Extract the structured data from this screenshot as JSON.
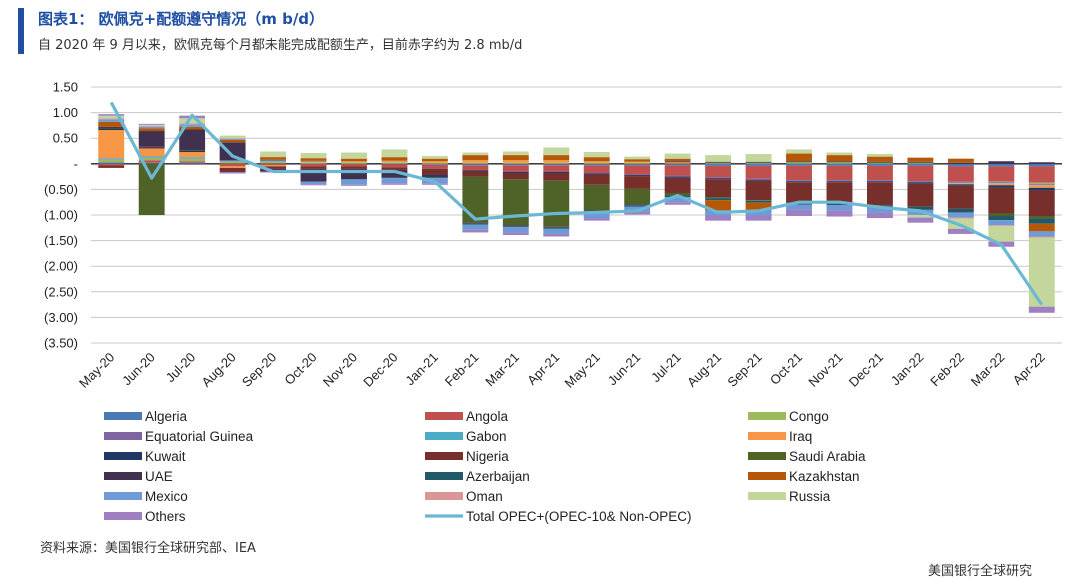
{
  "header": {
    "title": "图表1： 欧佩克+配额遵守情况（m b/d）",
    "subtitle": "自 2020 年 9 月以来，欧佩克每个月都未能完成配额生产，目前赤字约为 2.8 mb/d"
  },
  "footer": {
    "source": "资料来源：美国银行全球研究部、IEA",
    "watermark": "美国银行全球研究"
  },
  "chart_data": {
    "type": "bar",
    "stacked": true,
    "categories": [
      "May-20",
      "Jun-20",
      "Jul-20",
      "Aug-20",
      "Sep-20",
      "Oct-20",
      "Nov-20",
      "Dec-20",
      "Jan-21",
      "Feb-21",
      "Mar-21",
      "Apr-21",
      "May-21",
      "Jun-21",
      "Jul-21",
      "Aug-21",
      "Sep-21",
      "Oct-21",
      "Nov-21",
      "Dec-21",
      "Jan-22",
      "Feb-22",
      "Mar-22",
      "Apr-22"
    ],
    "ylim": [
      -3.5,
      1.5
    ],
    "y_ticks": [
      1.5,
      1.0,
      0.5,
      0,
      -0.5,
      -1.0,
      -1.5,
      -2.0,
      -2.5,
      -3.0,
      -3.5
    ],
    "y_tick_labels": [
      "1.50",
      "1.00",
      "0.50",
      "-",
      "(0.50)",
      "(1.00)",
      "(1.50)",
      "(2.00)",
      "(2.50)",
      "(3.00)",
      "(3.50)"
    ],
    "grid": true,
    "legend_position": "bottom",
    "legend_columns": 3,
    "series": [
      {
        "name": "Algeria",
        "color": "#4a7ab5",
        "values": [
          0.03,
          0.02,
          0.02,
          0.01,
          0.01,
          0.0,
          0.0,
          -0.01,
          -0.02,
          -0.03,
          -0.03,
          -0.03,
          -0.03,
          -0.03,
          -0.03,
          -0.04,
          -0.04,
          -0.04,
          -0.04,
          -0.04,
          -0.04,
          -0.05,
          -0.05,
          -0.05
        ]
      },
      {
        "name": "Angola",
        "color": "#c0504d",
        "values": [
          -0.03,
          0.05,
          0.03,
          -0.05,
          -0.03,
          -0.05,
          -0.05,
          -0.06,
          -0.08,
          -0.1,
          -0.12,
          -0.12,
          -0.15,
          -0.18,
          -0.2,
          -0.22,
          -0.25,
          -0.28,
          -0.28,
          -0.28,
          -0.3,
          -0.3,
          -0.3,
          -0.32
        ]
      },
      {
        "name": "Congo",
        "color": "#9bbb59",
        "values": [
          0.05,
          0.05,
          0.05,
          0.03,
          0.03,
          0.02,
          0.02,
          0.02,
          0.02,
          0.02,
          0.02,
          0.02,
          0.02,
          0.02,
          0.01,
          0.02,
          0.02,
          0.03,
          0.03,
          0.02,
          0.02,
          0.0,
          -0.01,
          -0.02
        ]
      },
      {
        "name": "Equatorial Guinea",
        "color": "#8064a2",
        "values": [
          0.01,
          0.01,
          0.01,
          0.01,
          0.01,
          0.0,
          0.0,
          0.0,
          0.0,
          0.0,
          -0.01,
          -0.01,
          -0.01,
          -0.01,
          -0.02,
          -0.02,
          -0.02,
          -0.02,
          -0.02,
          -0.02,
          -0.02,
          -0.02,
          -0.02,
          -0.02
        ]
      },
      {
        "name": "Gabon",
        "color": "#4bacc6",
        "values": [
          0.02,
          0.02,
          0.02,
          0.01,
          0.01,
          0.01,
          0.01,
          0.01,
          0.0,
          0.0,
          0.0,
          0.0,
          0.0,
          0.0,
          0.0,
          0.0,
          0.0,
          0.0,
          0.0,
          0.0,
          0.0,
          -0.01,
          -0.01,
          -0.01
        ]
      },
      {
        "name": "Iraq",
        "color": "#f79646",
        "values": [
          0.55,
          0.15,
          0.1,
          -0.03,
          -0.02,
          0.02,
          0.02,
          0.03,
          0.03,
          0.05,
          0.05,
          0.05,
          0.03,
          0.02,
          0.02,
          0.0,
          0.0,
          0.0,
          0.0,
          0.0,
          0.0,
          -0.02,
          -0.03,
          -0.05
        ]
      },
      {
        "name": "Kuwait",
        "color": "#1f3864",
        "values": [
          0.03,
          0.02,
          0.02,
          0.01,
          0.01,
          0.01,
          0.0,
          0.0,
          -0.01,
          -0.02,
          -0.02,
          -0.02,
          -0.02,
          -0.02,
          -0.02,
          -0.02,
          -0.02,
          -0.02,
          -0.02,
          -0.02,
          -0.03,
          -0.03,
          -0.05,
          -0.05
        ]
      },
      {
        "name": "Nigeria",
        "color": "#772f2c",
        "values": [
          -0.05,
          0.02,
          0.0,
          -0.08,
          -0.05,
          -0.05,
          -0.05,
          -0.05,
          -0.1,
          -0.1,
          -0.12,
          -0.15,
          -0.2,
          -0.25,
          -0.3,
          -0.35,
          -0.38,
          -0.4,
          -0.4,
          -0.45,
          -0.45,
          -0.45,
          -0.5,
          -0.5
        ]
      },
      {
        "name": "Saudi Arabia",
        "color": "#4f6228",
        "values": [
          0.01,
          -1.0,
          0.02,
          0.0,
          0.01,
          0.0,
          0.0,
          0.0,
          0.0,
          -0.9,
          -0.9,
          -0.9,
          -0.5,
          -0.3,
          -0.05,
          -0.02,
          -0.01,
          0.0,
          0.0,
          0.0,
          0.0,
          0.0,
          -0.05,
          -0.05
        ]
      },
      {
        "name": "UAE",
        "color": "#403151",
        "values": [
          0.02,
          0.3,
          0.4,
          0.35,
          -0.05,
          -0.25,
          -0.2,
          -0.15,
          -0.05,
          -0.02,
          -0.02,
          -0.02,
          -0.02,
          -0.02,
          0.02,
          0.02,
          0.02,
          0.02,
          0.02,
          0.02,
          0.02,
          0.02,
          0.05,
          0.03
        ]
      },
      {
        "name": "Azerbaijan",
        "color": "#215968",
        "values": [
          0.0,
          0.0,
          0.0,
          0.0,
          0.0,
          0.0,
          -0.01,
          -0.01,
          -0.02,
          -0.02,
          -0.02,
          -0.02,
          -0.03,
          -0.03,
          -0.03,
          -0.04,
          -0.04,
          -0.04,
          -0.05,
          -0.05,
          -0.06,
          -0.07,
          -0.08,
          -0.1
        ]
      },
      {
        "name": "Kazakhstan",
        "color": "#b65708",
        "values": [
          0.1,
          0.05,
          0.05,
          0.05,
          0.05,
          0.05,
          0.05,
          0.07,
          0.05,
          0.1,
          0.1,
          0.1,
          0.08,
          0.05,
          0.05,
          -0.2,
          -0.15,
          0.15,
          0.12,
          0.1,
          0.08,
          0.08,
          0.0,
          -0.15
        ]
      },
      {
        "name": "Mexico",
        "color": "#6f9ad8",
        "values": [
          0.05,
          0.03,
          0.05,
          0.02,
          0.0,
          -0.05,
          -0.1,
          -0.1,
          -0.1,
          -0.1,
          -0.1,
          -0.1,
          -0.1,
          -0.1,
          -0.1,
          -0.1,
          -0.1,
          -0.1,
          -0.1,
          -0.1,
          -0.1,
          -0.1,
          -0.1,
          -0.1
        ]
      },
      {
        "name": "Oman",
        "color": "#d99694",
        "values": [
          0.02,
          0.02,
          0.02,
          0.01,
          0.01,
          0.0,
          0.0,
          0.0,
          0.0,
          0.0,
          0.0,
          0.0,
          0.0,
          0.0,
          0.0,
          0.0,
          0.0,
          0.0,
          0.0,
          0.0,
          0.0,
          -0.02,
          -0.02,
          -0.02
        ]
      },
      {
        "name": "Russia",
        "color": "#c3d69b",
        "values": [
          0.05,
          0.02,
          0.1,
          0.05,
          0.1,
          0.1,
          0.12,
          0.15,
          0.05,
          0.05,
          0.07,
          0.15,
          0.1,
          0.05,
          0.1,
          0.13,
          0.15,
          0.08,
          0.05,
          0.05,
          -0.05,
          -0.2,
          -0.3,
          -1.35
        ]
      },
      {
        "name": "Others",
        "color": "#9e7fc2",
        "values": [
          0.03,
          0.02,
          0.05,
          -0.03,
          -0.02,
          -0.02,
          -0.02,
          -0.03,
          -0.03,
          -0.05,
          -0.05,
          -0.05,
          -0.05,
          -0.05,
          -0.05,
          -0.1,
          -0.1,
          -0.12,
          -0.12,
          -0.1,
          -0.1,
          -0.1,
          -0.1,
          -0.12
        ]
      }
    ],
    "line_series": {
      "name": "Total OPEC+(OPEC-10& Non-OPEC)",
      "color": "#6cb8d4",
      "values": [
        1.2,
        -0.28,
        0.95,
        0.15,
        -0.15,
        -0.15,
        -0.15,
        -0.15,
        -0.35,
        -1.08,
        -1.02,
        -0.97,
        -0.95,
        -0.92,
        -0.62,
        -0.95,
        -0.92,
        -0.75,
        -0.75,
        -0.85,
        -0.92,
        -1.2,
        -1.58,
        -2.75
      ]
    }
  }
}
